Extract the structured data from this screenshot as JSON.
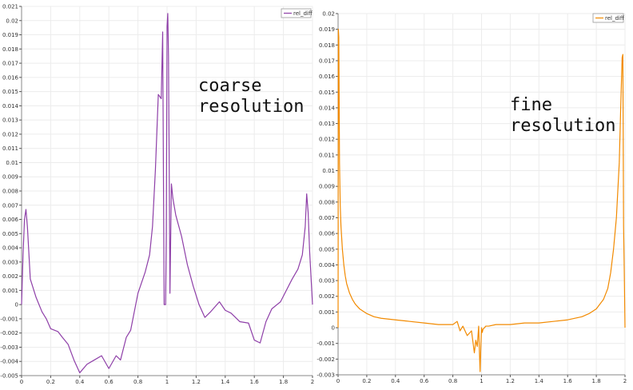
{
  "chart_data": [
    {
      "type": "line",
      "annotation": [
        "coarse",
        "resolution"
      ],
      "legend": "rel_diff",
      "legend_position": "top-right",
      "grid": true,
      "color": "#8e3fa8",
      "xlim": [
        0,
        2
      ],
      "ylim": [
        -0.005,
        0.021
      ],
      "x_ticks": [
        "0",
        "0.2",
        "0.4",
        "0.6",
        "0.8",
        "1",
        "1.2",
        "1.4",
        "1.6",
        "1.8",
        "2"
      ],
      "y_ticks": [
        "-0.005",
        "-0.004",
        "-0.003",
        "-0.002",
        "-0.001",
        "0",
        "0.001",
        "0.002",
        "0.003",
        "0.004",
        "0.005",
        "0.006",
        "0.007",
        "0.008",
        "0.009",
        "0.01",
        "0.011",
        "0.012",
        "0.013",
        "0.014",
        "0.015",
        "0.016",
        "0.017",
        "0.018",
        "0.019",
        "0.02",
        "0.021"
      ],
      "series": [
        {
          "name": "rel_diff",
          "x": [
            0,
            0.01,
            0.02,
            0.03,
            0.04,
            0.06,
            0.1,
            0.14,
            0.17,
            0.2,
            0.25,
            0.28,
            0.32,
            0.36,
            0.4,
            0.45,
            0.5,
            0.55,
            0.6,
            0.65,
            0.68,
            0.72,
            0.75,
            0.8,
            0.85,
            0.88,
            0.9,
            0.92,
            0.94,
            0.96,
            0.97,
            0.98,
            0.99,
            0.995,
            1.0,
            1.005,
            1.01,
            1.015,
            1.02,
            1.03,
            1.04,
            1.06,
            1.1,
            1.14,
            1.18,
            1.22,
            1.26,
            1.3,
            1.36,
            1.4,
            1.44,
            1.5,
            1.56,
            1.6,
            1.64,
            1.68,
            1.72,
            1.78,
            1.82,
            1.86,
            1.9,
            1.93,
            1.95,
            1.96,
            1.97,
            1.98,
            2.0
          ],
          "y": [
            0.0,
            0.0035,
            0.006,
            0.0067,
            0.0055,
            0.0018,
            0.0005,
            -0.0005,
            -0.001,
            -0.0017,
            -0.0019,
            -0.0023,
            -0.0028,
            -0.0039,
            -0.0048,
            -0.0042,
            -0.0039,
            -0.0036,
            -0.0045,
            -0.0036,
            -0.0039,
            -0.0023,
            -0.0018,
            0.0008,
            0.0023,
            0.0035,
            0.0055,
            0.0095,
            0.0148,
            0.0145,
            0.0192,
            0.0,
            0.0,
            0.005,
            0.0196,
            0.0205,
            0.0175,
            0.0095,
            0.0008,
            0.0085,
            0.0075,
            0.0063,
            0.0048,
            0.0028,
            0.0013,
            0.0,
            -0.0009,
            -0.0005,
            0.0002,
            -0.0004,
            -0.0006,
            -0.0012,
            -0.0013,
            -0.0025,
            -0.0027,
            -0.0012,
            -0.0003,
            0.0002,
            0.001,
            0.0018,
            0.0025,
            0.0035,
            0.0055,
            0.0078,
            0.0065,
            0.0038,
            0.0
          ]
        }
      ]
    },
    {
      "type": "line",
      "annotation": [
        "fine",
        "resolution"
      ],
      "legend": "rel_diff",
      "legend_position": "top-right",
      "grid": true,
      "color": "#f28a00",
      "xlim": [
        0,
        2
      ],
      "ylim": [
        -0.003,
        0.02
      ],
      "x_ticks": [
        "0",
        "0.2",
        "0.4",
        "0.6",
        "0.8",
        "1",
        "1.2",
        "1.4",
        "1.6",
        "1.8",
        "2"
      ],
      "y_ticks": [
        "-0.003",
        "-0.002",
        "-0.001",
        "0",
        "0.001",
        "0.002",
        "0.003",
        "0.004",
        "0.005",
        "0.006",
        "0.007",
        "0.008",
        "0.009",
        "0.01",
        "0.011",
        "0.012",
        "0.013",
        "0.014",
        "0.015",
        "0.016",
        "0.017",
        "0.018",
        "0.019",
        "0.02"
      ],
      "series": [
        {
          "name": "rel_diff",
          "x": [
            0,
            0.002,
            0.005,
            0.01,
            0.015,
            0.02,
            0.03,
            0.04,
            0.05,
            0.06,
            0.08,
            0.1,
            0.12,
            0.15,
            0.2,
            0.25,
            0.3,
            0.4,
            0.5,
            0.6,
            0.7,
            0.8,
            0.83,
            0.85,
            0.87,
            0.9,
            0.93,
            0.95,
            0.96,
            0.97,
            0.98,
            0.985,
            0.99,
            0.995,
            1.0,
            1.005,
            1.01,
            1.02,
            1.03,
            1.05,
            1.1,
            1.2,
            1.3,
            1.4,
            1.5,
            1.6,
            1.7,
            1.75,
            1.8,
            1.85,
            1.88,
            1.9,
            1.92,
            1.94,
            1.96,
            1.97,
            1.98,
            1.985,
            1.99,
            1.995,
            2.0
          ],
          "y": [
            0.0,
            0.019,
            0.0185,
            0.0105,
            0.0078,
            0.0065,
            0.005,
            0.004,
            0.0033,
            0.0028,
            0.0022,
            0.0018,
            0.0015,
            0.0012,
            0.0009,
            0.0007,
            0.0006,
            0.0005,
            0.0004,
            0.0003,
            0.0002,
            0.0002,
            0.0004,
            -0.0002,
            0.0001,
            -0.0005,
            -0.0002,
            -0.0016,
            -0.0008,
            -0.0012,
            0.0001,
            -0.0015,
            -0.0028,
            -0.0012,
            0.0,
            -0.0003,
            -0.0001,
            0.0,
            0.0001,
            0.0001,
            0.0002,
            0.0002,
            0.0003,
            0.0003,
            0.0004,
            0.0005,
            0.0007,
            0.0009,
            0.0012,
            0.0018,
            0.0025,
            0.0035,
            0.005,
            0.007,
            0.0105,
            0.014,
            0.0172,
            0.0174,
            0.0065,
            0.0035,
            0.0
          ]
        }
      ]
    }
  ]
}
